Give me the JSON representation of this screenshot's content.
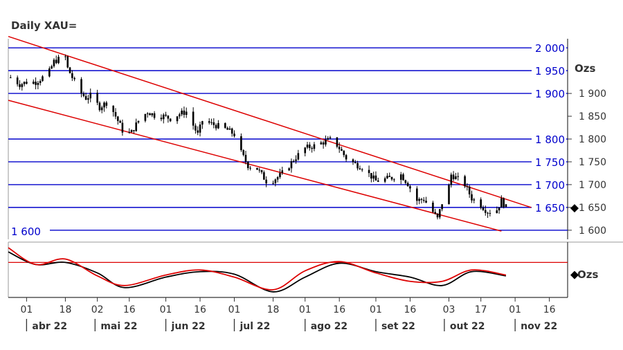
{
  "chart_data": [
    {
      "type": "candlestick",
      "title": "Daily XAU=",
      "unit": "Ozs",
      "ylim": [
        1580,
        2020
      ],
      "y_ticks": [
        {
          "value": 1900,
          "label": "1 900"
        },
        {
          "value": 1850,
          "label": "1 850"
        },
        {
          "value": 1800,
          "label": "1 800"
        },
        {
          "value": 1750,
          "label": "1 750"
        },
        {
          "value": 1700,
          "label": "1 700"
        },
        {
          "value": 1650,
          "label": "1 650"
        },
        {
          "value": 1600,
          "label": "1 600"
        }
      ],
      "horizontal_lines": [
        {
          "value": 2000,
          "label": "2 000",
          "color": "#0000cc"
        },
        {
          "value": 1950,
          "label": "1 950",
          "color": "#0000cc"
        },
        {
          "value": 1900,
          "label": "1 900",
          "color": "#0000cc"
        },
        {
          "value": 1800,
          "label": "1 800",
          "color": "#0000cc"
        },
        {
          "value": 1750,
          "label": "1 750",
          "color": "#0000cc"
        },
        {
          "value": 1700,
          "label": "1 700",
          "color": "#0000cc"
        },
        {
          "value": 1650,
          "label": "1 650",
          "color": "#0000cc"
        },
        {
          "value": 1600,
          "label": "1 600",
          "color": "#0000cc"
        }
      ],
      "channel_lines": [
        {
          "name": "upper",
          "color": "#dd0000",
          "points": [
            [
              "2022-03-24",
              2025
            ],
            [
              "2022-11-08",
              1650
            ]
          ]
        },
        {
          "name": "lower",
          "color": "#dd0000",
          "points": [
            [
              "2022-03-24",
              1885
            ],
            [
              "2022-10-26",
              1598
            ]
          ]
        }
      ],
      "last_value_marker": 1648,
      "price_path": [
        [
          "2022-03-25",
          1935
        ],
        [
          "2022-03-29",
          1920
        ],
        [
          "2022-04-01",
          1925
        ],
        [
          "2022-04-05",
          1925
        ],
        [
          "2022-04-08",
          1935
        ],
        [
          "2022-04-11",
          1948
        ],
        [
          "2022-04-13",
          1970
        ],
        [
          "2022-04-15",
          1975
        ],
        [
          "2022-04-18",
          1980
        ],
        [
          "2022-04-19",
          1955
        ],
        [
          "2022-04-21",
          1935
        ],
        [
          "2022-04-24",
          1905
        ],
        [
          "2022-04-27",
          1890
        ],
        [
          "2022-04-29",
          1895
        ],
        [
          "2022-05-03",
          1870
        ],
        [
          "2022-05-06",
          1880
        ],
        [
          "2022-05-09",
          1860
        ],
        [
          "2022-05-12",
          1830
        ],
        [
          "2022-05-14",
          1808
        ],
        [
          "2022-05-17",
          1815
        ],
        [
          "2022-05-20",
          1840
        ],
        [
          "2022-05-24",
          1860
        ],
        [
          "2022-05-27",
          1852
        ],
        [
          "2022-05-31",
          1850
        ],
        [
          "2022-06-03",
          1845
        ],
        [
          "2022-06-07",
          1855
        ],
        [
          "2022-06-10",
          1860
        ],
        [
          "2022-06-13",
          1830
        ],
        [
          "2022-06-15",
          1810
        ],
        [
          "2022-06-17",
          1840
        ],
        [
          "2022-06-20",
          1835
        ],
        [
          "2022-06-24",
          1828
        ],
        [
          "2022-06-28",
          1820
        ],
        [
          "2022-07-01",
          1810
        ],
        [
          "2022-07-04",
          1770
        ],
        [
          "2022-07-07",
          1742
        ],
        [
          "2022-07-11",
          1735
        ],
        [
          "2022-07-15",
          1708
        ],
        [
          "2022-07-18",
          1710
        ],
        [
          "2022-07-21",
          1720
        ],
        [
          "2022-07-24",
          1735
        ],
        [
          "2022-07-27",
          1755
        ],
        [
          "2022-07-29",
          1765
        ],
        [
          "2022-08-01",
          1780
        ],
        [
          "2022-08-05",
          1785
        ],
        [
          "2022-08-10",
          1795
        ],
        [
          "2022-08-13",
          1800
        ],
        [
          "2022-08-16",
          1780
        ],
        [
          "2022-08-19",
          1758
        ],
        [
          "2022-08-23",
          1745
        ],
        [
          "2022-08-26",
          1738
        ],
        [
          "2022-08-30",
          1718
        ],
        [
          "2022-09-01",
          1708
        ],
        [
          "2022-09-05",
          1712
        ],
        [
          "2022-09-08",
          1715
        ],
        [
          "2022-09-12",
          1722
        ],
        [
          "2022-09-15",
          1702
        ],
        [
          "2022-09-19",
          1665
        ],
        [
          "2022-09-22",
          1668
        ],
        [
          "2022-09-26",
          1640
        ],
        [
          "2022-09-28",
          1625
        ],
        [
          "2022-09-30",
          1660
        ],
        [
          "2022-10-02",
          1670
        ],
        [
          "2022-10-04",
          1722
        ],
        [
          "2022-10-07",
          1712
        ],
        [
          "2022-10-10",
          1700
        ],
        [
          "2022-10-13",
          1670
        ],
        [
          "2022-10-17",
          1655
        ],
        [
          "2022-10-20",
          1640
        ],
        [
          "2022-10-24",
          1645
        ],
        [
          "2022-10-26",
          1665
        ],
        [
          "2022-10-28",
          1650
        ]
      ],
      "x_tick_labels": [
        "01",
        "18",
        "02",
        "16",
        "01",
        "16",
        "01",
        "18",
        "01",
        "16",
        "01",
        "16",
        "03",
        "17",
        "01",
        "16"
      ],
      "x_tick_dates": [
        "2022-04-01",
        "2022-04-18",
        "2022-05-02",
        "2022-05-16",
        "2022-06-01",
        "2022-06-16",
        "2022-07-01",
        "2022-07-18",
        "2022-08-01",
        "2022-08-16",
        "2022-09-01",
        "2022-09-16",
        "2022-10-03",
        "2022-10-17",
        "2022-11-01",
        "2022-11-16"
      ],
      "month_labels": [
        {
          "label": "abr 22",
          "date": "2022-04-01"
        },
        {
          "label": "mai 22",
          "date": "2022-05-01"
        },
        {
          "label": "jun 22",
          "date": "2022-06-01"
        },
        {
          "label": "jul 22",
          "date": "2022-07-01"
        },
        {
          "label": "ago 22",
          "date": "2022-08-01"
        },
        {
          "label": "set 22",
          "date": "2022-09-01"
        },
        {
          "label": "out 22",
          "date": "2022-10-01"
        },
        {
          "label": "nov 22",
          "date": "2022-11-01"
        }
      ],
      "x_range": [
        "2022-03-24",
        "2022-11-24"
      ],
      "grid": false
    },
    {
      "type": "line",
      "unit": "Ozs",
      "series": [
        {
          "color": "#000000",
          "values": [
            [
              "2022-03-24",
              0.85
            ],
            [
              "2022-04-05",
              0.55
            ],
            [
              "2022-04-18",
              0.6
            ],
            [
              "2022-05-02",
              0.35
            ],
            [
              "2022-05-14",
              0.0
            ],
            [
              "2022-06-01",
              0.25
            ],
            [
              "2022-06-16",
              0.38
            ],
            [
              "2022-07-01",
              0.32
            ],
            [
              "2022-07-18",
              -0.1
            ],
            [
              "2022-08-01",
              0.25
            ],
            [
              "2022-08-16",
              0.58
            ],
            [
              "2022-09-01",
              0.38
            ],
            [
              "2022-09-16",
              0.25
            ],
            [
              "2022-09-30",
              0.05
            ],
            [
              "2022-10-13",
              0.38
            ],
            [
              "2022-10-28",
              0.28
            ]
          ]
        },
        {
          "color": "#dd0000",
          "values": [
            [
              "2022-03-24",
              0.95
            ],
            [
              "2022-04-05",
              0.55
            ],
            [
              "2022-04-18",
              0.68
            ],
            [
              "2022-05-02",
              0.28
            ],
            [
              "2022-05-14",
              0.05
            ],
            [
              "2022-06-01",
              0.3
            ],
            [
              "2022-06-16",
              0.42
            ],
            [
              "2022-07-01",
              0.25
            ],
            [
              "2022-07-18",
              -0.05
            ],
            [
              "2022-08-01",
              0.4
            ],
            [
              "2022-08-16",
              0.62
            ],
            [
              "2022-09-01",
              0.35
            ],
            [
              "2022-09-16",
              0.15
            ],
            [
              "2022-09-30",
              0.15
            ],
            [
              "2022-10-13",
              0.42
            ],
            [
              "2022-10-28",
              0.3
            ]
          ]
        }
      ],
      "reference_line": {
        "value": 0.6,
        "color": "#dd0000"
      },
      "ylim": [
        -0.2,
        1.05
      ],
      "last_value_marker": 0.3
    }
  ]
}
